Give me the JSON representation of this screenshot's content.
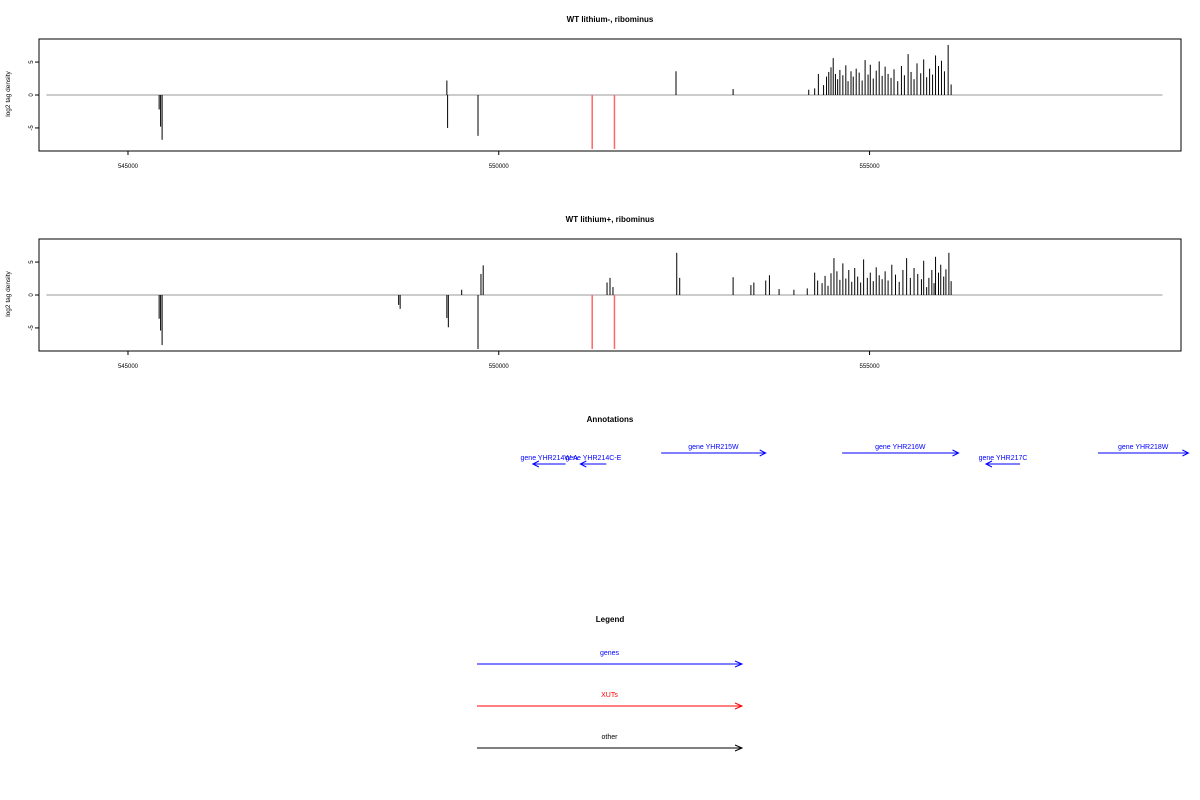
{
  "chart_data": [
    {
      "type": "bar",
      "title": "WT lithium-, ribominus",
      "ylabel": "log2 tag density",
      "xlim": [
        543800,
        559200
      ],
      "ylim": [
        -8.5,
        8.5
      ],
      "xticks": [
        545000,
        550000,
        555000
      ],
      "xtick_labels": [
        "545000",
        "550000",
        "555000"
      ],
      "yticks": [
        5,
        0,
        -5
      ],
      "ytick_labels": [
        "5",
        "0",
        "-5"
      ],
      "bars": [
        {
          "x": 545420,
          "y": -2.2
        },
        {
          "x": 545440,
          "y": -4.8
        },
        {
          "x": 545460,
          "y": -6.8
        },
        {
          "x": 549300,
          "y": 2.2
        },
        {
          "x": 549310,
          "y": -5.0
        },
        {
          "x": 549720,
          "y": -6.2
        },
        {
          "x": 552390,
          "y": 3.6
        },
        {
          "x": 553160,
          "y": 0.9
        },
        {
          "x": 554180,
          "y": 0.8
        },
        {
          "x": 554260,
          "y": 1.0
        },
        {
          "x": 554310,
          "y": 3.2
        },
        {
          "x": 554380,
          "y": 1.5
        },
        {
          "x": 554420,
          "y": 2.8
        },
        {
          "x": 554450,
          "y": 3.5
        },
        {
          "x": 554480,
          "y": 4.2
        },
        {
          "x": 554510,
          "y": 5.6
        },
        {
          "x": 554540,
          "y": 3.2
        },
        {
          "x": 554570,
          "y": 2.4
        },
        {
          "x": 554600,
          "y": 3.8
        },
        {
          "x": 554640,
          "y": 3.0
        },
        {
          "x": 554680,
          "y": 4.5
        },
        {
          "x": 554710,
          "y": 2.1
        },
        {
          "x": 554750,
          "y": 3.6
        },
        {
          "x": 554780,
          "y": 2.8
        },
        {
          "x": 554820,
          "y": 4.0
        },
        {
          "x": 554860,
          "y": 3.4
        },
        {
          "x": 554900,
          "y": 2.2
        },
        {
          "x": 554940,
          "y": 5.3
        },
        {
          "x": 554980,
          "y": 3.1
        },
        {
          "x": 555010,
          "y": 4.6
        },
        {
          "x": 555050,
          "y": 2.5
        },
        {
          "x": 555090,
          "y": 3.7
        },
        {
          "x": 555130,
          "y": 5.1
        },
        {
          "x": 555170,
          "y": 2.9
        },
        {
          "x": 555210,
          "y": 4.3
        },
        {
          "x": 555250,
          "y": 3.2
        },
        {
          "x": 555290,
          "y": 2.6
        },
        {
          "x": 555330,
          "y": 3.9
        },
        {
          "x": 555380,
          "y": 2.1
        },
        {
          "x": 555430,
          "y": 4.4
        },
        {
          "x": 555470,
          "y": 3.0
        },
        {
          "x": 555520,
          "y": 6.2
        },
        {
          "x": 555560,
          "y": 3.5
        },
        {
          "x": 555600,
          "y": 2.4
        },
        {
          "x": 555640,
          "y": 4.8
        },
        {
          "x": 555690,
          "y": 3.3
        },
        {
          "x": 555730,
          "y": 5.4
        },
        {
          "x": 555770,
          "y": 2.7
        },
        {
          "x": 555810,
          "y": 4.0
        },
        {
          "x": 555850,
          "y": 3.1
        },
        {
          "x": 555890,
          "y": 6.0
        },
        {
          "x": 555930,
          "y": 4.4
        },
        {
          "x": 555970,
          "y": 5.2
        },
        {
          "x": 556010,
          "y": 3.6
        },
        {
          "x": 556060,
          "y": 7.6
        },
        {
          "x": 556100,
          "y": 1.6
        }
      ],
      "xut_bars": [
        {
          "x": 551260,
          "y": -8.2
        },
        {
          "x": 551560,
          "y": -8.2
        }
      ]
    },
    {
      "type": "bar",
      "title": "WT lithium+, ribominus",
      "ylabel": "log2 tag density",
      "xlim": [
        543800,
        559200
      ],
      "ylim": [
        -8.5,
        8.5
      ],
      "xticks": [
        545000,
        550000,
        555000
      ],
      "xtick_labels": [
        "545000",
        "550000",
        "555000"
      ],
      "yticks": [
        5,
        0,
        -5
      ],
      "ytick_labels": [
        "5",
        "0",
        "-5"
      ],
      "bars": [
        {
          "x": 545420,
          "y": -3.6
        },
        {
          "x": 545440,
          "y": -5.4
        },
        {
          "x": 545460,
          "y": -7.6
        },
        {
          "x": 548650,
          "y": -1.5
        },
        {
          "x": 548670,
          "y": -2.1
        },
        {
          "x": 549300,
          "y": -3.5
        },
        {
          "x": 549320,
          "y": -4.9
        },
        {
          "x": 549500,
          "y": 0.8
        },
        {
          "x": 549720,
          "y": -8.2
        },
        {
          "x": 549760,
          "y": 3.2
        },
        {
          "x": 549790,
          "y": 4.5
        },
        {
          "x": 551460,
          "y": 1.9
        },
        {
          "x": 551500,
          "y": 2.6
        },
        {
          "x": 551540,
          "y": 1.2
        },
        {
          "x": 552400,
          "y": 6.4
        },
        {
          "x": 552440,
          "y": 2.6
        },
        {
          "x": 553160,
          "y": 2.7
        },
        {
          "x": 553400,
          "y": 1.5
        },
        {
          "x": 553440,
          "y": 1.9
        },
        {
          "x": 553600,
          "y": 2.2
        },
        {
          "x": 553650,
          "y": 3.0
        },
        {
          "x": 553780,
          "y": 0.9
        },
        {
          "x": 553980,
          "y": 0.8
        },
        {
          "x": 554160,
          "y": 1.0
        },
        {
          "x": 554260,
          "y": 3.4
        },
        {
          "x": 554300,
          "y": 2.2
        },
        {
          "x": 554360,
          "y": 1.8
        },
        {
          "x": 554400,
          "y": 2.9
        },
        {
          "x": 554440,
          "y": 1.4
        },
        {
          "x": 554480,
          "y": 3.3
        },
        {
          "x": 554520,
          "y": 5.6
        },
        {
          "x": 554560,
          "y": 3.6
        },
        {
          "x": 554600,
          "y": 2.3
        },
        {
          "x": 554640,
          "y": 4.8
        },
        {
          "x": 554680,
          "y": 2.5
        },
        {
          "x": 554720,
          "y": 3.8
        },
        {
          "x": 554760,
          "y": 2.0
        },
        {
          "x": 554800,
          "y": 4.1
        },
        {
          "x": 554840,
          "y": 2.8
        },
        {
          "x": 554880,
          "y": 1.9
        },
        {
          "x": 554920,
          "y": 5.4
        },
        {
          "x": 554970,
          "y": 2.6
        },
        {
          "x": 555010,
          "y": 3.4
        },
        {
          "x": 555050,
          "y": 2.1
        },
        {
          "x": 555090,
          "y": 4.2
        },
        {
          "x": 555130,
          "y": 3.0
        },
        {
          "x": 555170,
          "y": 2.4
        },
        {
          "x": 555210,
          "y": 3.6
        },
        {
          "x": 555250,
          "y": 2.2
        },
        {
          "x": 555300,
          "y": 4.6
        },
        {
          "x": 555350,
          "y": 3.1
        },
        {
          "x": 555400,
          "y": 2.0
        },
        {
          "x": 555450,
          "y": 3.8
        },
        {
          "x": 555500,
          "y": 5.6
        },
        {
          "x": 555550,
          "y": 2.6
        },
        {
          "x": 555600,
          "y": 4.1
        },
        {
          "x": 555650,
          "y": 3.2
        },
        {
          "x": 555700,
          "y": 2.4
        },
        {
          "x": 555730,
          "y": 5.2
        },
        {
          "x": 555770,
          "y": 1.2
        },
        {
          "x": 555800,
          "y": 2.6
        },
        {
          "x": 555840,
          "y": 3.8
        },
        {
          "x": 555870,
          "y": 1.8
        },
        {
          "x": 555890,
          "y": 5.8
        },
        {
          "x": 555930,
          "y": 3.4
        },
        {
          "x": 555960,
          "y": 4.6
        },
        {
          "x": 556000,
          "y": 2.8
        },
        {
          "x": 556030,
          "y": 3.9
        },
        {
          "x": 556070,
          "y": 6.4
        },
        {
          "x": 556100,
          "y": 2.1
        }
      ],
      "xut_bars": [
        {
          "x": 551260,
          "y": -8.2
        },
        {
          "x": 551560,
          "y": -8.2
        }
      ]
    }
  ],
  "annotations": {
    "title": "Annotations",
    "genes": [
      {
        "label": "gene YHR214W-A",
        "start": 550900,
        "end": 550460,
        "row": 1
      },
      {
        "label": "gene YHR214C-E",
        "start": 551450,
        "end": 551100,
        "row": 1
      },
      {
        "label": "gene YHR215W",
        "start": 552190,
        "end": 553600,
        "row": 0
      },
      {
        "label": "gene YHR216W",
        "start": 554630,
        "end": 556200,
        "row": 0
      },
      {
        "label": "gene YHR217C",
        "start": 557030,
        "end": 556570,
        "row": 1
      },
      {
        "label": "gene YHR218W",
        "start": 558080,
        "end": 559300,
        "row": 0
      }
    ]
  },
  "legend": {
    "title": "Legend",
    "items": [
      {
        "label": "genes",
        "color": "#0000ff"
      },
      {
        "label": "XUTs",
        "color": "#ff0000"
      },
      {
        "label": "other",
        "color": "#000000"
      }
    ]
  },
  "colors": {
    "bar": "#000000",
    "xut": "#ff6666",
    "baseline": "#999999",
    "gene": "#0000ff"
  }
}
